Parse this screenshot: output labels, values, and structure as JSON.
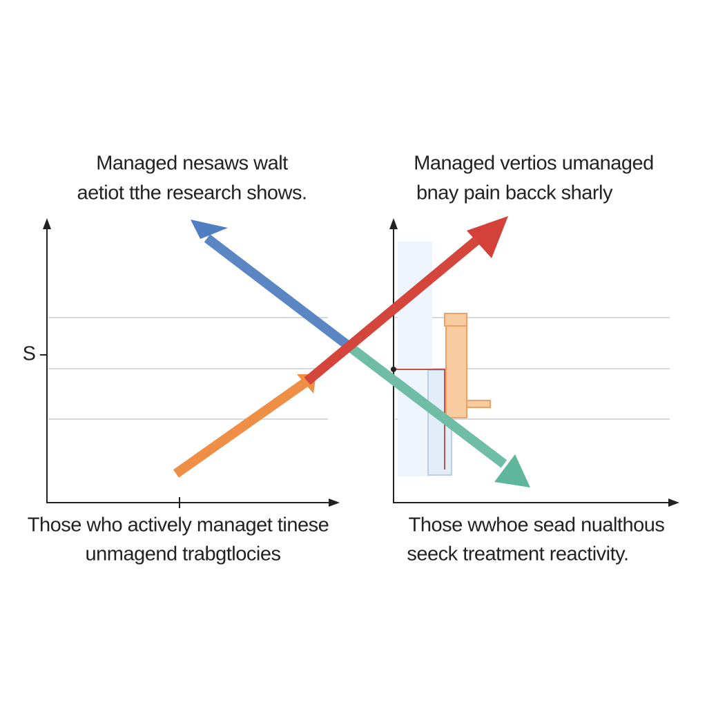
{
  "panels": [
    {
      "title": [
        "Managed nesaws walt",
        "aetiot tthe research shows."
      ],
      "caption": [
        "Those who actively managet tinese",
        "unmagend trabgtlocies"
      ]
    },
    {
      "title": [
        "Managed vertios umanaged",
        "bnay pain bacck sharly"
      ],
      "caption": [
        "Those wwhoe sead nualthous",
        "seeck treatment reactivity."
      ]
    }
  ],
  "axis_label": "S"
}
